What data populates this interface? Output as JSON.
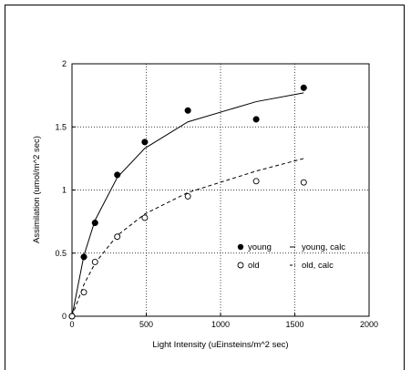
{
  "chart_data": {
    "type": "scatter",
    "title": "",
    "xlabel": "Light Intensity (uEinsteins/m^2 sec)",
    "ylabel": "Assimilation (umol/m^2 sec)",
    "xlim": [
      0,
      2000
    ],
    "ylim": [
      0,
      2
    ],
    "x_ticks": [
      0,
      500,
      1000,
      1500,
      2000
    ],
    "y_ticks": [
      0,
      0.5,
      1,
      1.5,
      2
    ],
    "x_tick_labels": [
      "0",
      "500",
      "1000",
      "1500",
      "2000"
    ],
    "y_tick_labels": [
      "0",
      "0.5",
      "1",
      "1.5",
      "2"
    ],
    "grid": true,
    "grid_style": "dotted",
    "legend_position": "lower-right",
    "series": [
      {
        "name": "young",
        "kind": "points",
        "marker": "filled-circle",
        "x": [
          0,
          80,
          155,
          305,
          490,
          780,
          1240,
          1560
        ],
        "y": [
          0,
          0.47,
          0.74,
          1.12,
          1.38,
          1.63,
          1.56,
          1.81
        ]
      },
      {
        "name": "old",
        "kind": "points",
        "marker": "open-circle",
        "x": [
          0,
          80,
          155,
          305,
          490,
          780,
          1240,
          1560
        ],
        "y": [
          0,
          0.19,
          0.43,
          0.63,
          0.78,
          0.95,
          1.07,
          1.06
        ]
      },
      {
        "name": "young, calc",
        "kind": "line",
        "style": "solid",
        "x": [
          0,
          80,
          155,
          305,
          490,
          780,
          1240,
          1560
        ],
        "y": [
          0,
          0.48,
          0.76,
          1.1,
          1.33,
          1.54,
          1.7,
          1.77
        ]
      },
      {
        "name": "old, calc",
        "kind": "line",
        "style": "dashed",
        "x": [
          0,
          80,
          155,
          305,
          490,
          780,
          1240,
          1560
        ],
        "y": [
          0,
          0.25,
          0.42,
          0.64,
          0.81,
          0.98,
          1.15,
          1.25
        ]
      }
    ]
  }
}
